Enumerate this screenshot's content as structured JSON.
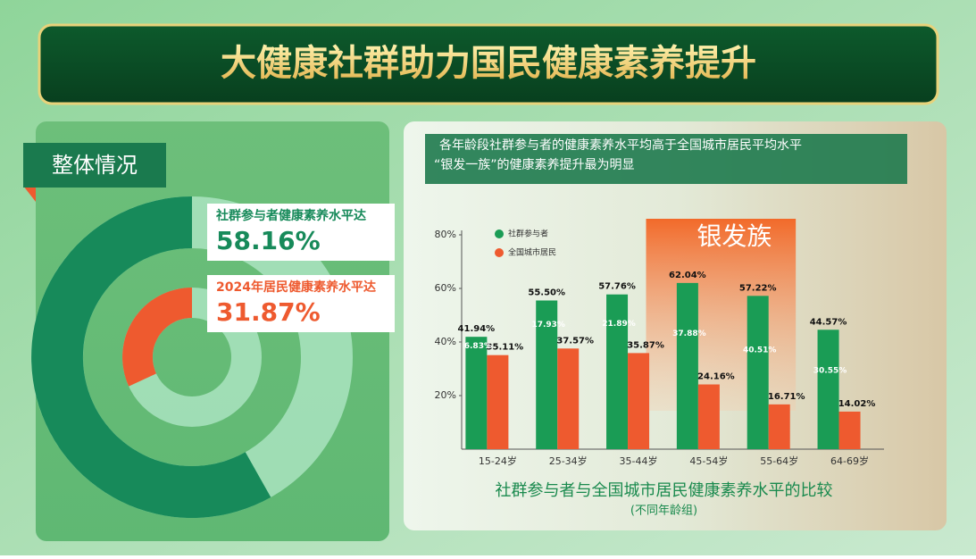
{
  "title": "大健康社群助力国民健康素养提升",
  "chart_data": [
    {
      "type": "donut",
      "title": "整体情况",
      "series": [
        {
          "name": "社群参与者健康素养水平达",
          "color": "#178a5a",
          "values": [
            58.16
          ],
          "value_labels": [
            "58.16%"
          ]
        },
        {
          "name": "2024年居民健康素养水平达",
          "color": "#ee5a2f",
          "values": [
            31.87
          ],
          "value_labels": [
            "31.87%"
          ]
        }
      ]
    },
    {
      "type": "bar",
      "subtitle": [
        "各年龄段社群参与者的健康素养水平均高于全国城市居民平均水平",
        "“银发一族”的健康素养提升最为明显"
      ],
      "title": "社群参与者与全国城市居民健康素养水平的比较",
      "note": "(不同年龄组)",
      "highlight_label": "银发族",
      "categories": [
        "15-24岁",
        "25-34岁",
        "35-44岁",
        "45-54岁",
        "55-64岁",
        "64-69岁"
      ],
      "series": [
        {
          "name": "社群参与者",
          "color": "#1a9c55",
          "values": [
            41.94,
            55.5,
            57.76,
            62.04,
            57.22,
            44.57
          ],
          "value_labels": [
            "41.94%",
            "55.50%",
            "57.76%",
            "62.04%",
            "57.22%",
            "44.57%"
          ]
        },
        {
          "name": "全国城市居民",
          "color": "#ee5a2f",
          "values": [
            35.11,
            37.57,
            35.87,
            24.16,
            16.71,
            14.02
          ],
          "value_labels": [
            "35.11%",
            "37.57%",
            "35.87%",
            "24.16%",
            "16.71%",
            "14.02%"
          ]
        }
      ],
      "differences": [
        6.83,
        17.93,
        21.89,
        37.88,
        40.51,
        30.55
      ],
      "difference_labels": [
        "6.83%",
        "17.93%",
        "21.89%",
        "37.88%",
        "40.51%",
        "30.55%"
      ],
      "ylim": [
        0,
        80
      ],
      "yticks": [
        {
          "value": 20,
          "label": "20%"
        },
        {
          "value": 40,
          "label": "40%"
        },
        {
          "value": 60,
          "label": "60%"
        },
        {
          "value": 80,
          "label": "80%"
        }
      ]
    }
  ]
}
